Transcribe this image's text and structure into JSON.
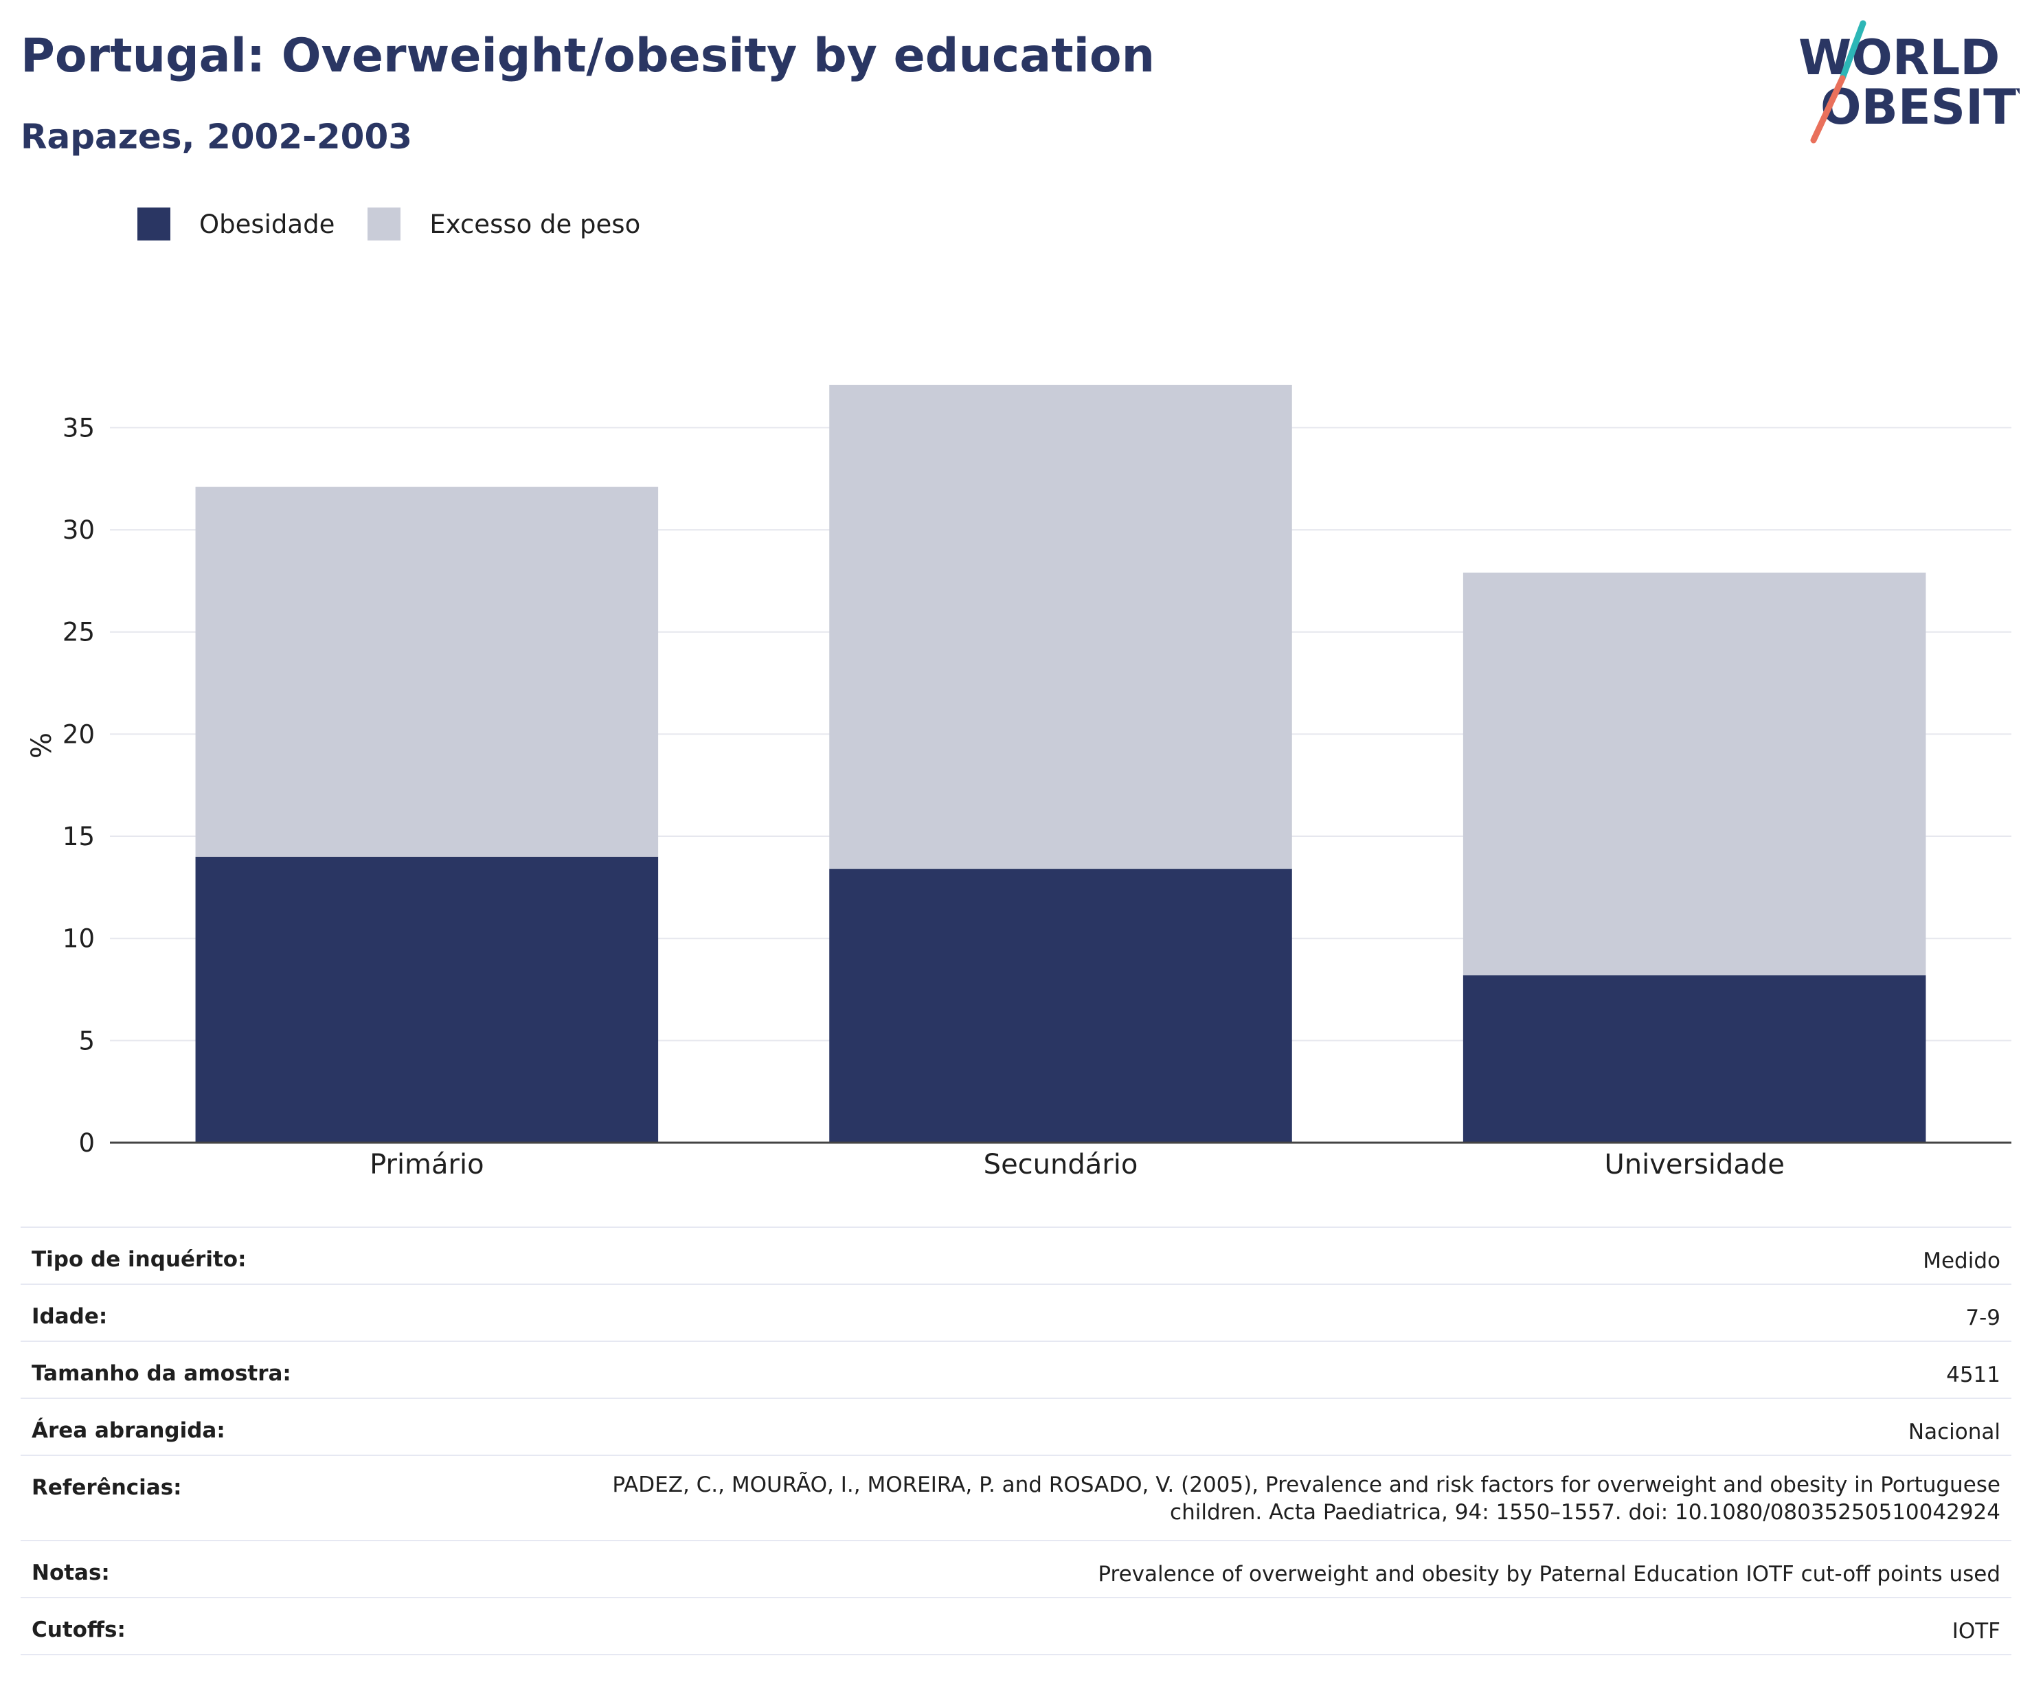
{
  "header": {
    "title": "Portugal: Overweight/obesity by education",
    "subtitle": "Rapazes, 2002-2003"
  },
  "logo": {
    "line1": "WORLD",
    "line2": "OBESITY",
    "colors": {
      "text": "#2a3663",
      "slash_top": "#2db6b6",
      "slash_bottom": "#e9705b"
    }
  },
  "legend": {
    "items": [
      {
        "label": "Obesidade",
        "color": "#2a3663"
      },
      {
        "label": "Excesso de peso",
        "color": "#c9ccd8"
      }
    ]
  },
  "chart_data": {
    "type": "bar",
    "stacked": true,
    "categories": [
      "Primário",
      "Secundário",
      "Universidade"
    ],
    "series": [
      {
        "name": "Obesidade",
        "color": "#2a3663",
        "values": [
          14.0,
          13.4,
          8.2
        ]
      },
      {
        "name": "Excesso de peso",
        "color": "#c9ccd8",
        "values": [
          18.1,
          23.7,
          19.7
        ]
      }
    ],
    "ylabel": "%",
    "ylim": [
      0,
      37.1
    ],
    "yticks": [
      0,
      5,
      10,
      15,
      20,
      25,
      30,
      35
    ],
    "grid": true,
    "legend_position": "top-left"
  },
  "info": {
    "rows": [
      {
        "label": "Tipo de inquérito:",
        "value": "Medido"
      },
      {
        "label": "Idade:",
        "value": "7-9"
      },
      {
        "label": "Tamanho da amostra:",
        "value": "4511"
      },
      {
        "label": "Área abrangida:",
        "value": "Nacional"
      },
      {
        "label": "Referências:",
        "value": "PADEZ, C., MOURÃO, I., MOREIRA, P. and ROSADO, V. (2005), Prevalence and risk factors for overweight and obesity in Portuguese children. Acta Paediatrica, 94: 1550–1557. doi: 10.1080/08035250510042924"
      },
      {
        "label": "Notas:",
        "value": "Prevalence of overweight and obesity by Paternal Education IOTF cut-off points used"
      },
      {
        "label": "Cutoffs:",
        "value": "IOTF"
      }
    ]
  }
}
